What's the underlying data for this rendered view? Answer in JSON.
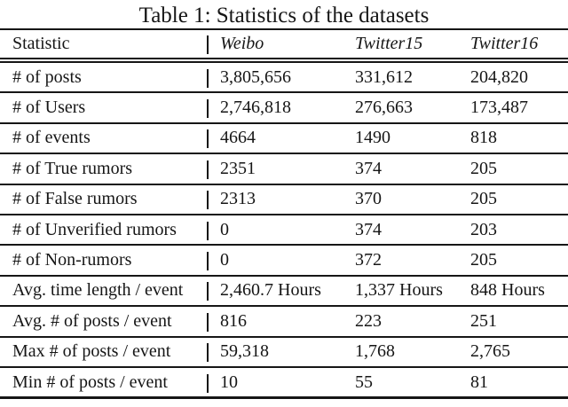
{
  "caption": "Table 1: Statistics of the datasets",
  "colors": {
    "text": "#161616",
    "background": "#ffffff",
    "rule": "#161616"
  },
  "table": {
    "columns": [
      "Statistic",
      "Weibo",
      "Twitter15",
      "Twitter16"
    ],
    "rows": [
      {
        "statistic": "# of posts",
        "weibo": "3,805,656",
        "twitter15": "331,612",
        "twitter16": "204,820"
      },
      {
        "statistic": "# of Users",
        "weibo": "2,746,818",
        "twitter15": "276,663",
        "twitter16": "173,487"
      },
      {
        "statistic": "# of events",
        "weibo": "4664",
        "twitter15": "1490",
        "twitter16": "818"
      },
      {
        "statistic": "# of True rumors",
        "weibo": "2351",
        "twitter15": "374",
        "twitter16": "205"
      },
      {
        "statistic": "# of False rumors",
        "weibo": "2313",
        "twitter15": "370",
        "twitter16": "205"
      },
      {
        "statistic": "# of Unverified rumors",
        "weibo": "0",
        "twitter15": "374",
        "twitter16": "203"
      },
      {
        "statistic": "# of Non-rumors",
        "weibo": "0",
        "twitter15": "372",
        "twitter16": "205"
      },
      {
        "statistic": "Avg. time length / event",
        "weibo": "2,460.7 Hours",
        "twitter15": "1,337 Hours",
        "twitter16": "848 Hours"
      },
      {
        "statistic": "Avg. # of posts / event",
        "weibo": "816",
        "twitter15": "223",
        "twitter16": "251"
      },
      {
        "statistic": "Max # of posts / event",
        "weibo": "59,318",
        "twitter15": "1,768",
        "twitter16": "2,765"
      },
      {
        "statistic": "Min # of posts / event",
        "weibo": "10",
        "twitter15": "55",
        "twitter16": "81"
      }
    ]
  }
}
